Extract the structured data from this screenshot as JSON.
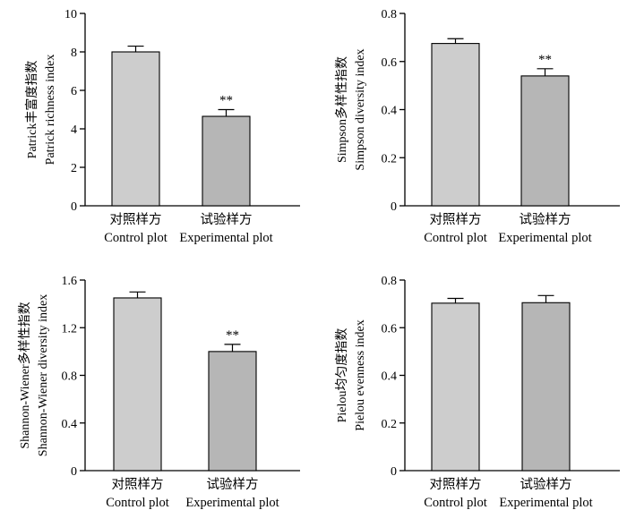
{
  "figure": {
    "colors": {
      "control_bar": "#cdcdcd",
      "experimental_bar": "#b6b6b6",
      "axis": "#000000"
    }
  },
  "chart_data": [
    {
      "type": "bar",
      "ylabel_cn": "Patrick丰富度指数",
      "ylabel_en": "Patrick richness index",
      "categories": [
        {
          "cn": "对照样方",
          "en": "Control plot"
        },
        {
          "cn": "试验样方",
          "en": "Experimental plot"
        }
      ],
      "values": [
        8.0,
        4.65
      ],
      "errors": [
        0.3,
        0.35
      ],
      "significance": [
        "",
        "**"
      ],
      "ylim": [
        0,
        10
      ],
      "yticks": [
        0,
        2,
        4,
        6,
        8,
        10
      ],
      "yticklabels": [
        "0",
        "2",
        "4",
        "6",
        "8",
        "10"
      ]
    },
    {
      "type": "bar",
      "ylabel_cn": "Simpson多样性指数",
      "ylabel_en": "Simpson diversity index",
      "categories": [
        {
          "cn": "对照样方",
          "en": "Control plot"
        },
        {
          "cn": "试验样方",
          "en": "Experimental plot"
        }
      ],
      "values": [
        0.675,
        0.54
      ],
      "errors": [
        0.02,
        0.03
      ],
      "significance": [
        "",
        "**"
      ],
      "ylim": [
        0,
        0.8
      ],
      "yticks": [
        0,
        0.2,
        0.4,
        0.6,
        0.8
      ],
      "yticklabels": [
        "0",
        "0.2",
        "0.4",
        "0.6",
        "0.8"
      ]
    },
    {
      "type": "bar",
      "ylabel_cn": "Shannon-Wiener多样性指数",
      "ylabel_en": "Shannon-Wiener diversity index",
      "categories": [
        {
          "cn": "对照样方",
          "en": "Control plot"
        },
        {
          "cn": "试验样方",
          "en": "Experimental plot"
        }
      ],
      "values": [
        1.45,
        1.0
      ],
      "errors": [
        0.05,
        0.06
      ],
      "significance": [
        "",
        "**"
      ],
      "ylim": [
        0,
        1.6
      ],
      "yticks": [
        0,
        0.4,
        0.8,
        1.2,
        1.6
      ],
      "yticklabels": [
        "0",
        "0.4",
        "0.8",
        "1.2",
        "1.6"
      ]
    },
    {
      "type": "bar",
      "ylabel_cn": "Pielou均匀度指数",
      "ylabel_en": "Pielou evenness index",
      "categories": [
        {
          "cn": "对照样方",
          "en": "Control plot"
        },
        {
          "cn": "试验样方",
          "en": "Experimental plot"
        }
      ],
      "values": [
        0.703,
        0.705
      ],
      "errors": [
        0.02,
        0.03
      ],
      "significance": [
        "",
        ""
      ],
      "ylim": [
        0,
        0.8
      ],
      "yticks": [
        0,
        0.2,
        0.4,
        0.6,
        0.8
      ],
      "yticklabels": [
        "0",
        "0.2",
        "0.4",
        "0.6",
        "0.8"
      ]
    }
  ]
}
